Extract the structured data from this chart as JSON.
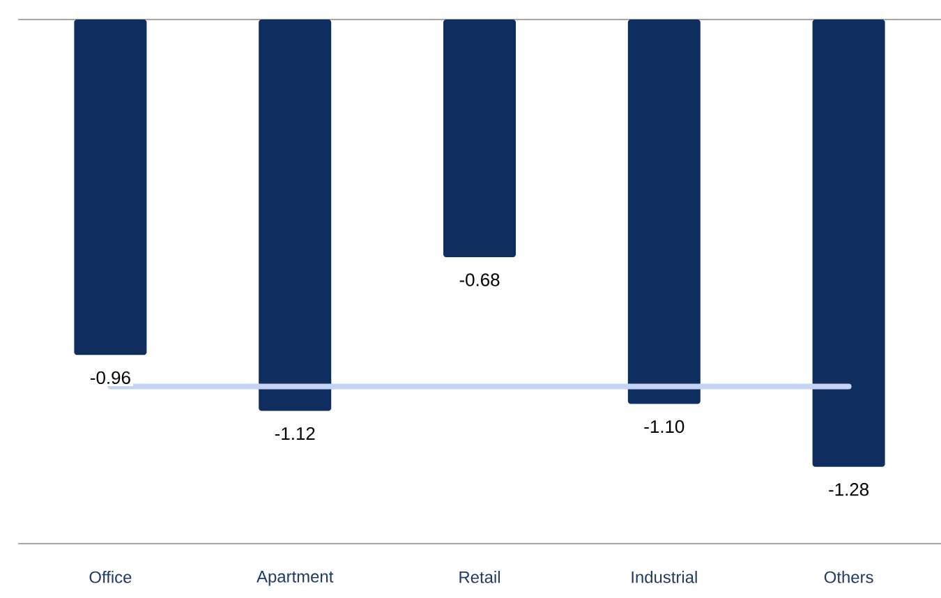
{
  "chart_data": {
    "type": "bar",
    "categories": [
      "Office",
      "Apartment",
      "Retail",
      "Industrial",
      "Others"
    ],
    "ylim": [
      -1.5,
      0
    ],
    "series": [
      {
        "color": "#0f2d5e",
        "values": [
          -0.96,
          -1.12,
          -0.68,
          -1.1,
          -1.28
        ],
        "value_labels": [
          "-0.96",
          "-1.12",
          "-0.68",
          "-1.10",
          "-1.28"
        ]
      },
      {
        "type": "line",
        "color": "#c5d3f5",
        "values": [
          -1.05,
          -1.05,
          -1.05,
          -1.05,
          -1.05
        ]
      }
    ]
  }
}
